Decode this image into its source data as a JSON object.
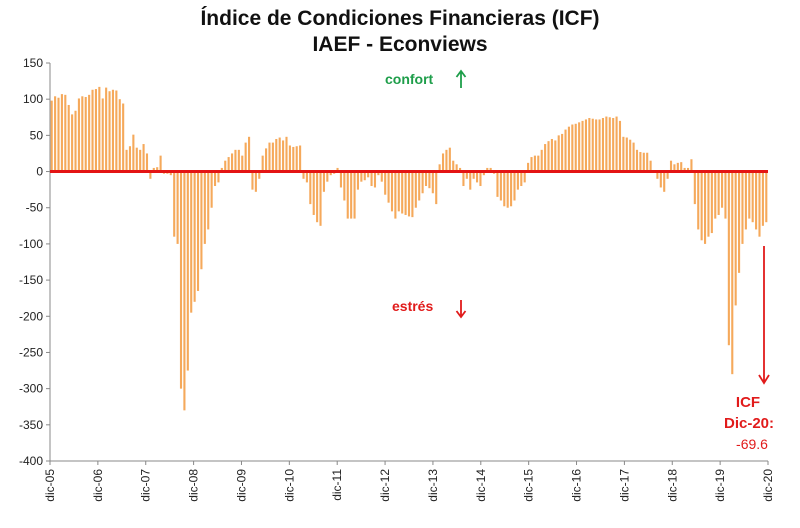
{
  "chart_data": {
    "type": "bar",
    "title": "Índice de Condiciones Financieras (ICF)",
    "subtitle": "IAEF - Econviews",
    "xlabel": "",
    "ylabel": "",
    "ylim": [
      -400,
      150
    ],
    "yticks": [
      150,
      100,
      50,
      0,
      -50,
      -100,
      -150,
      -200,
      -250,
      -300,
      -350,
      -400
    ],
    "x_tick_labels": [
      "dic-05",
      "dic-06",
      "dic-07",
      "dic-08",
      "dic-09",
      "dic-10",
      "dic-11",
      "dic-12",
      "dic-13",
      "dic-14",
      "dic-15",
      "dic-16",
      "dic-17",
      "dic-18",
      "dic-19",
      "dic-20"
    ],
    "bar_color": "#f5a95b",
    "zero_line_color": "#e41414",
    "annotations": {
      "confort": "confort",
      "estres": "estrés",
      "icf_label_1": "ICF",
      "icf_label_2": "Dic-20:",
      "icf_value": "-69.6"
    },
    "series": [
      {
        "name": "ICF",
        "frequency": "monthly, dic-05 to dic-20",
        "values": [
          98,
          104,
          102,
          107,
          106,
          92,
          79,
          84,
          101,
          104,
          103,
          106,
          113,
          114,
          117,
          101,
          116,
          111,
          113,
          112,
          100,
          94,
          30,
          35,
          51,
          33,
          30,
          38,
          25,
          -10,
          5,
          6,
          22,
          -3,
          -3,
          -5,
          -90,
          -100,
          -300,
          -330,
          -275,
          -195,
          -180,
          -165,
          -135,
          -100,
          -80,
          -50,
          -20,
          -15,
          5,
          15,
          20,
          25,
          30,
          30,
          22,
          40,
          48,
          -25,
          -28,
          -10,
          22,
          32,
          40,
          40,
          45,
          47,
          43,
          48,
          36,
          34,
          35,
          36,
          -10,
          -15,
          -45,
          -60,
          -70,
          -75,
          -28,
          -14,
          -5,
          -3,
          5,
          -22,
          -40,
          -65,
          -65,
          -65,
          -25,
          -14,
          -12,
          -8,
          -20,
          -22,
          -5,
          -14,
          -32,
          -43,
          -55,
          -65,
          -55,
          -58,
          -60,
          -62,
          -63,
          -50,
          -40,
          -30,
          -20,
          -23,
          -30,
          -45,
          10,
          25,
          30,
          33,
          15,
          10,
          5,
          -20,
          -10,
          -25,
          -10,
          -15,
          -20,
          -5,
          5,
          5,
          -3,
          -35,
          -40,
          -48,
          -50,
          -48,
          -40,
          -25,
          -20,
          -15,
          12,
          20,
          22,
          22,
          30,
          38,
          42,
          45,
          43,
          50,
          52,
          58,
          62,
          65,
          66,
          68,
          70,
          72,
          74,
          73,
          72,
          72,
          74,
          76,
          75,
          74,
          76,
          70,
          48,
          47,
          44,
          40,
          30,
          27,
          26,
          26,
          15,
          -2,
          -10,
          -22,
          -28,
          -10,
          15,
          10,
          12,
          13,
          5,
          5,
          17,
          -45,
          -80,
          -95,
          -100,
          -90,
          -85,
          -65,
          -60,
          -50,
          -65,
          -240,
          -280,
          -185,
          -140,
          -100,
          -80,
          -65,
          -70,
          -80,
          -90,
          -75,
          -70
        ]
      }
    ]
  }
}
